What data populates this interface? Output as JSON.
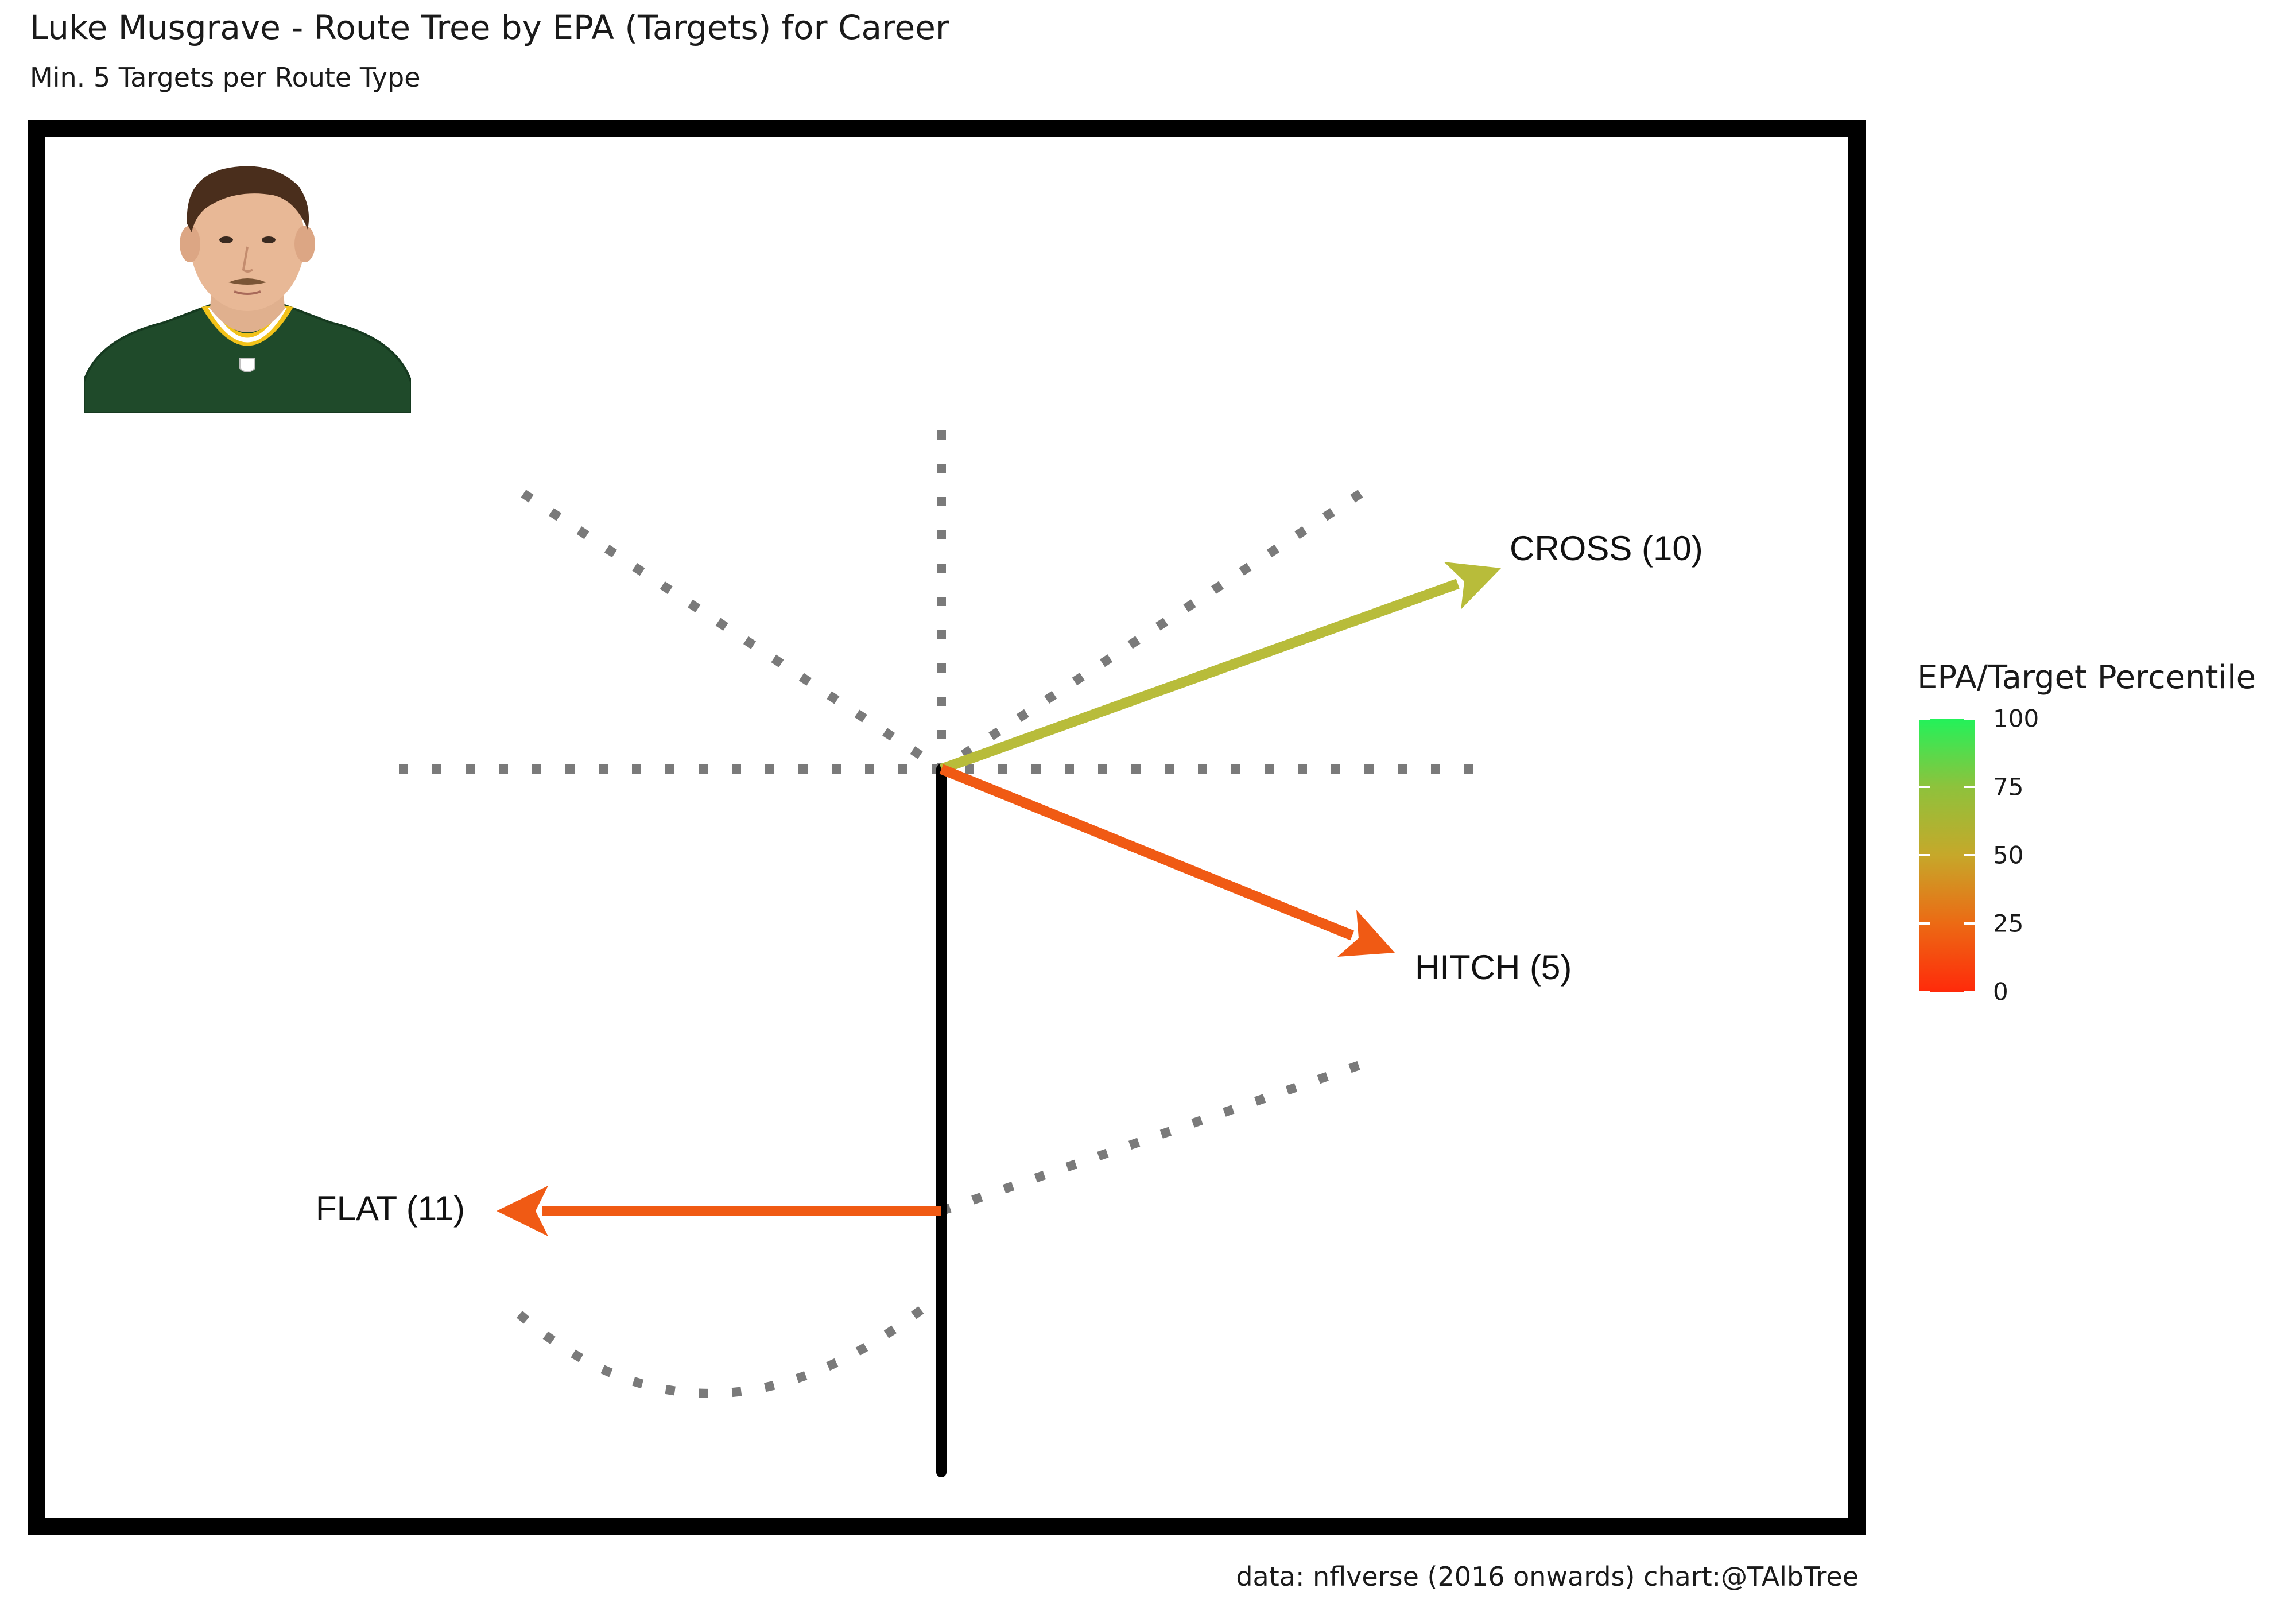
{
  "title": "Luke Musgrave - Route Tree by EPA (Targets) for Career",
  "subtitle": "Min. 5 Targets per Route Type",
  "caption": "data: nflverse (2016 onwards)  chart:@TAlbTree",
  "headshot_icon": "player-headshot-icon",
  "chart_data": {
    "type": "route-tree",
    "title": "Luke Musgrave - Route Tree by EPA (Targets) for Career",
    "subtitle": "Min. 5 Targets per Route Type",
    "routes": [
      {
        "route": "CROSS",
        "targets": 10,
        "label": "CROSS (10)",
        "epa_percentile": 62,
        "color": "#b8bc3a"
      },
      {
        "route": "HITCH",
        "targets": 5,
        "label": "HITCH (5)",
        "epa_percentile": 24,
        "color": "#f05a14"
      },
      {
        "route": "FLAT",
        "targets": 11,
        "label": "FLAT (11)",
        "epa_percentile": 22,
        "color": "#f05a14"
      }
    ],
    "legend": {
      "title": "EPA/Target Percentile",
      "ticks": [
        0,
        25,
        50,
        75,
        100
      ],
      "tick_labels": [
        "0",
        "25",
        "50",
        "75",
        "100"
      ],
      "colors": {
        "low": "#ff2a0a",
        "mid": "#c6a82a",
        "high": "#22f25a"
      },
      "placement": "right"
    }
  }
}
